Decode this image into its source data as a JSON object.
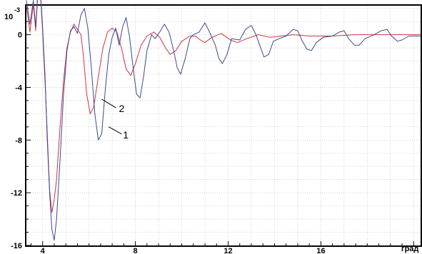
{
  "chart_data": {
    "type": "line",
    "xlabel": "град",
    "ylabel": "",
    "y_scale_label": "10",
    "y_scale_exponent": "-3",
    "xlim": [
      3.3,
      20.3
    ],
    "ylim": [
      -16,
      2.2
    ],
    "x_ticks": [
      4,
      8,
      12,
      16
    ],
    "y_ticks": [
      -16,
      -12,
      -8,
      -4,
      0
    ],
    "grid": true,
    "series": [
      {
        "name": "1",
        "color": "#3d4a8a",
        "points": [
          [
            3.3,
            2.6
          ],
          [
            3.45,
            0.8
          ],
          [
            3.6,
            2.6
          ],
          [
            3.7,
            0.6
          ],
          [
            3.8,
            3.5
          ],
          [
            3.9,
            3.4
          ],
          [
            4.0,
            0.5
          ],
          [
            4.1,
            -3.0
          ],
          [
            4.2,
            -8.0
          ],
          [
            4.3,
            -12.0
          ],
          [
            4.4,
            -14.8
          ],
          [
            4.5,
            -15.6
          ],
          [
            4.6,
            -14.0
          ],
          [
            4.75,
            -9.5
          ],
          [
            4.9,
            -4.5
          ],
          [
            5.05,
            -1.2
          ],
          [
            5.2,
            0.3
          ],
          [
            5.35,
            0.6
          ],
          [
            5.5,
            0.1
          ],
          [
            5.65,
            1.5
          ],
          [
            5.8,
            2.0
          ],
          [
            5.95,
            0.5
          ],
          [
            6.1,
            -2.5
          ],
          [
            6.25,
            -6.0
          ],
          [
            6.4,
            -8.0
          ],
          [
            6.55,
            -7.5
          ],
          [
            6.7,
            -4.2
          ],
          [
            6.85,
            -1.5
          ],
          [
            7.0,
            -0.2
          ],
          [
            7.15,
            0.5
          ],
          [
            7.3,
            -0.8
          ],
          [
            7.45,
            0.6
          ],
          [
            7.6,
            1.3
          ],
          [
            7.75,
            -0.2
          ],
          [
            7.9,
            -2.5
          ],
          [
            8.05,
            -4.5
          ],
          [
            8.2,
            -4.8
          ],
          [
            8.35,
            -3.2
          ],
          [
            8.5,
            -1.2
          ],
          [
            8.7,
            0.0
          ],
          [
            8.85,
            -0.3
          ],
          [
            9.05,
            0.2
          ],
          [
            9.25,
            0.8
          ],
          [
            9.45,
            0.2
          ],
          [
            9.65,
            -1.2
          ],
          [
            9.8,
            -2.5
          ],
          [
            9.95,
            -3.0
          ],
          [
            10.15,
            -1.8
          ],
          [
            10.35,
            -0.3
          ],
          [
            10.5,
            0.0
          ],
          [
            10.75,
            0.2
          ],
          [
            11.0,
            0.9
          ],
          [
            11.2,
            0.2
          ],
          [
            11.45,
            -0.8
          ],
          [
            11.6,
            -1.8
          ],
          [
            11.75,
            -2.2
          ],
          [
            11.95,
            -1.5
          ],
          [
            12.15,
            -0.3
          ],
          [
            12.5,
            -0.4
          ],
          [
            12.75,
            0.4
          ],
          [
            13.0,
            0.7
          ],
          [
            13.2,
            0.0
          ],
          [
            13.4,
            -1.0
          ],
          [
            13.55,
            -1.7
          ],
          [
            13.75,
            -1.5
          ],
          [
            13.95,
            -0.5
          ],
          [
            14.2,
            -0.3
          ],
          [
            14.5,
            -0.1
          ],
          [
            14.8,
            0.4
          ],
          [
            15.0,
            0.3
          ],
          [
            15.2,
            -0.5
          ],
          [
            15.4,
            -1.1
          ],
          [
            15.6,
            -1.2
          ],
          [
            15.8,
            -0.6
          ],
          [
            16.1,
            -0.2
          ],
          [
            16.5,
            -0.1
          ],
          [
            16.8,
            0.2
          ],
          [
            17.0,
            0.3
          ],
          [
            17.2,
            -0.3
          ],
          [
            17.45,
            -0.8
          ],
          [
            17.65,
            -0.8
          ],
          [
            17.9,
            -0.3
          ],
          [
            18.3,
            0.0
          ],
          [
            18.6,
            0.3
          ],
          [
            18.85,
            0.4
          ],
          [
            19.05,
            -0.1
          ],
          [
            19.3,
            -0.5
          ],
          [
            19.5,
            -0.4
          ],
          [
            19.8,
            -0.1
          ],
          [
            20.3,
            -0.1
          ]
        ]
      },
      {
        "name": "2",
        "color": "#cc3344",
        "points": [
          [
            3.3,
            2.2
          ],
          [
            3.45,
            0.2
          ],
          [
            3.6,
            2.3
          ],
          [
            3.7,
            0.3
          ],
          [
            3.8,
            3.3
          ],
          [
            3.9,
            3.2
          ],
          [
            4.0,
            0.2
          ],
          [
            4.1,
            -3.5
          ],
          [
            4.2,
            -7.5
          ],
          [
            4.3,
            -11.8
          ],
          [
            4.4,
            -13.5
          ],
          [
            4.5,
            -12.5
          ],
          [
            4.6,
            -11.0
          ],
          [
            4.75,
            -7.0
          ],
          [
            4.9,
            -3.5
          ],
          [
            5.05,
            -1.0
          ],
          [
            5.2,
            0.2
          ],
          [
            5.35,
            0.8
          ],
          [
            5.5,
            0.4
          ],
          [
            5.65,
            0.0
          ],
          [
            5.75,
            -1.5
          ],
          [
            5.9,
            -4.5
          ],
          [
            6.05,
            -6.0
          ],
          [
            6.2,
            -5.5
          ],
          [
            6.4,
            -3.2
          ],
          [
            6.6,
            -1.0
          ],
          [
            6.8,
            0.2
          ],
          [
            7.0,
            0.5
          ],
          [
            7.2,
            0.2
          ],
          [
            7.4,
            -1.0
          ],
          [
            7.6,
            -2.6
          ],
          [
            7.8,
            -3.1
          ],
          [
            8.0,
            -2.2
          ],
          [
            8.25,
            -0.8
          ],
          [
            8.5,
            -0.1
          ],
          [
            8.8,
            0.2
          ],
          [
            9.05,
            -0.2
          ],
          [
            9.3,
            -1.0
          ],
          [
            9.5,
            -1.5
          ],
          [
            9.75,
            -1.2
          ],
          [
            10.0,
            -0.5
          ],
          [
            10.35,
            -0.1
          ],
          [
            10.6,
            -0.1
          ],
          [
            10.8,
            -0.4
          ],
          [
            11.0,
            -0.6
          ],
          [
            11.3,
            -0.2
          ],
          [
            11.7,
            0.1
          ],
          [
            12.1,
            -0.4
          ],
          [
            12.4,
            -0.6
          ],
          [
            12.8,
            -0.3
          ],
          [
            13.3,
            0.0
          ],
          [
            13.8,
            -0.2
          ],
          [
            14.3,
            -0.1
          ],
          [
            14.8,
            0.0
          ],
          [
            15.5,
            -0.1
          ],
          [
            16.5,
            -0.1
          ],
          [
            17.5,
            0.0
          ],
          [
            18.5,
            0.0
          ],
          [
            20.3,
            0.0
          ]
        ]
      }
    ],
    "annotations": [
      {
        "text": "2",
        "series": "2",
        "at": [
          6.55,
          -4.9
        ]
      },
      {
        "text": "1",
        "series": "1",
        "at": [
          6.85,
          -7.0
        ]
      }
    ]
  }
}
